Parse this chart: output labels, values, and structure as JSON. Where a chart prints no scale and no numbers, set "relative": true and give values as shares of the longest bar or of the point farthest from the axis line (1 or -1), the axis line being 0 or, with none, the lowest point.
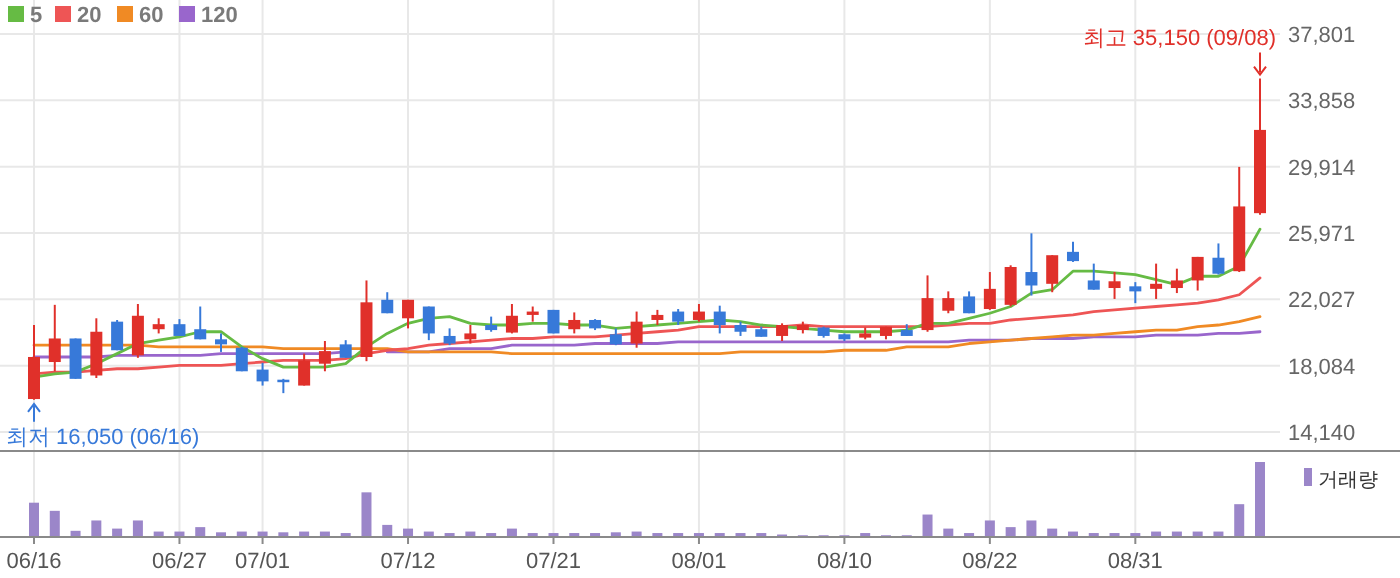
{
  "chart_data": [
    {
      "type": "candlestick",
      "categories": [
        null,
        null,
        null,
        null,
        null,
        null,
        null,
        null,
        null,
        null,
        null,
        null,
        null,
        null,
        null,
        null,
        null,
        null,
        null,
        null,
        null,
        null,
        null,
        null,
        null,
        null,
        null,
        null,
        null,
        null,
        null,
        null,
        null,
        null,
        null,
        null,
        null,
        null,
        null,
        null,
        null,
        null,
        null,
        null,
        null,
        null,
        null,
        null,
        null,
        null,
        null,
        null,
        null,
        null,
        null,
        null,
        null,
        null,
        null,
        null
      ],
      "ohlc": [
        [
          16100,
          20500,
          16050,
          18600
        ],
        [
          18300,
          21700,
          17750,
          19700
        ],
        [
          19700,
          19700,
          17300,
          17300
        ],
        [
          17500,
          20900,
          17350,
          20100
        ],
        [
          20700,
          20800,
          19000,
          19000
        ],
        [
          18700,
          21750,
          18550,
          21050
        ],
        [
          20250,
          20900,
          20000,
          20550
        ],
        [
          20550,
          20850,
          19850,
          19850
        ],
        [
          20250,
          21600,
          19650,
          19650
        ],
        [
          19650,
          20000,
          18900,
          19350
        ],
        [
          19150,
          19200,
          17750,
          17750
        ],
        [
          17850,
          18250,
          16900,
          17150
        ],
        [
          17250,
          17300,
          16450,
          17100
        ],
        [
          16900,
          18800,
          16900,
          18400
        ],
        [
          18200,
          19550,
          17750,
          18950
        ],
        [
          19350,
          19600,
          18550,
          18550
        ],
        [
          18600,
          23150,
          18350,
          21850
        ],
        [
          22000,
          22450,
          21200,
          21200
        ],
        [
          20900,
          22000,
          20300,
          22000
        ],
        [
          21600,
          21600,
          19600,
          20000
        ],
        [
          19850,
          20300,
          19300,
          19400
        ],
        [
          19650,
          20500,
          19400,
          20000
        ],
        [
          20500,
          21000,
          20100,
          20200
        ],
        [
          20050,
          21750,
          20000,
          21050
        ],
        [
          21100,
          21600,
          20700,
          21300
        ],
        [
          21400,
          21400,
          20000,
          20000
        ],
        [
          20250,
          21250,
          20000,
          20800
        ],
        [
          20800,
          20850,
          20200,
          20300
        ],
        [
          19950,
          20300,
          19300,
          19350
        ],
        [
          19400,
          21300,
          19150,
          20700
        ],
        [
          20800,
          21400,
          20500,
          21100
        ],
        [
          21300,
          21450,
          20500,
          20700
        ],
        [
          20800,
          21750,
          20700,
          21300
        ],
        [
          21300,
          21650,
          20000,
          20500
        ],
        [
          20500,
          20700,
          19850,
          20100
        ],
        [
          20250,
          20400,
          19800,
          19800
        ],
        [
          19850,
          20600,
          19550,
          20500
        ],
        [
          20200,
          20700,
          20000,
          20500
        ],
        [
          20350,
          20400,
          19750,
          19850
        ],
        [
          19950,
          20000,
          19550,
          19650
        ],
        [
          19750,
          20350,
          19650,
          20000
        ],
        [
          19850,
          20400,
          19650,
          20400
        ],
        [
          20200,
          20550,
          19850,
          19850
        ],
        [
          20200,
          23450,
          20100,
          22100
        ],
        [
          21350,
          22500,
          21200,
          22100
        ],
        [
          22200,
          22500,
          21200,
          21200
        ],
        [
          21450,
          23650,
          21400,
          22650
        ],
        [
          21700,
          24050,
          21600,
          23950
        ],
        [
          23650,
          25950,
          22250,
          22850
        ],
        [
          22950,
          24650,
          22450,
          24650
        ],
        [
          24850,
          25450,
          24250,
          24300
        ],
        [
          23150,
          24150,
          22600,
          22600
        ],
        [
          22700,
          23650,
          22050,
          23100
        ],
        [
          22800,
          23050,
          21800,
          22500
        ],
        [
          22650,
          24150,
          22050,
          22950
        ],
        [
          22700,
          23850,
          22400,
          23150
        ],
        [
          23150,
          24550,
          22550,
          24550
        ],
        [
          24500,
          25350,
          23500,
          23550
        ],
        [
          23700,
          29900,
          23650,
          27550
        ],
        [
          27150,
          35150,
          27050,
          32100
        ]
      ],
      "series": [
        {
          "name": "5",
          "type": "line",
          "color": "#66bb44",
          "values": [
            17400,
            17600,
            17700,
            18200,
            18800,
            19400,
            19600,
            19800,
            20100,
            20100,
            19200,
            18500,
            18000,
            18000,
            18000,
            18200,
            19200,
            20000,
            20600,
            20900,
            21000,
            20600,
            20500,
            20500,
            20600,
            20600,
            20500,
            20500,
            20300,
            20400,
            20500,
            20600,
            20700,
            20800,
            20700,
            20500,
            20400,
            20300,
            20200,
            20100,
            20100,
            20100,
            20200,
            20600,
            20600,
            20900,
            21200,
            21600,
            22400,
            22600,
            23700,
            23700,
            23600,
            23500,
            23200,
            22900,
            23400,
            23400,
            24000,
            26200
          ]
        },
        {
          "name": "20",
          "type": "line",
          "color": "#ee5555",
          "values": [
            17600,
            17700,
            17700,
            17800,
            17900,
            17900,
            18000,
            18100,
            18100,
            18100,
            18200,
            18300,
            18400,
            18400,
            18400,
            18500,
            18800,
            19000,
            19100,
            19300,
            19400,
            19500,
            19600,
            19700,
            19700,
            19800,
            19800,
            19800,
            19900,
            20000,
            20100,
            20200,
            20400,
            20400,
            20400,
            20400,
            20400,
            20500,
            20400,
            20400,
            20400,
            20400,
            20400,
            20400,
            20500,
            20600,
            20600,
            20800,
            20900,
            21000,
            21100,
            21300,
            21400,
            21500,
            21600,
            21700,
            21800,
            22000,
            22300,
            23300
          ]
        },
        {
          "name": "60",
          "type": "line",
          "color": "#f08a24",
          "values": [
            19300,
            19300,
            19300,
            19300,
            19300,
            19300,
            19200,
            19200,
            19200,
            19200,
            19200,
            19200,
            19100,
            19100,
            19100,
            19100,
            19100,
            19100,
            18900,
            18900,
            18900,
            18900,
            18900,
            18800,
            18800,
            18800,
            18800,
            18800,
            18800,
            18800,
            18800,
            18800,
            18800,
            18800,
            18900,
            18900,
            18900,
            18900,
            18900,
            19000,
            19000,
            19000,
            19200,
            19200,
            19200,
            19400,
            19500,
            19600,
            19700,
            19800,
            19900,
            19900,
            20000,
            20100,
            20200,
            20200,
            20400,
            20500,
            20700,
            21000
          ]
        },
        {
          "name": "120",
          "type": "line",
          "color": "#9966cc",
          "values": [
            18600,
            18600,
            18600,
            18600,
            18700,
            18700,
            18700,
            18700,
            18700,
            18800,
            18800,
            18800,
            18800,
            18800,
            18800,
            18900,
            null,
            18900,
            18900,
            18900,
            19100,
            19100,
            19100,
            19300,
            19300,
            19300,
            19300,
            19400,
            19400,
            19400,
            19400,
            19500,
            19500,
            19500,
            19500,
            19500,
            19500,
            19500,
            19500,
            19500,
            19500,
            19500,
            19500,
            19500,
            19500,
            19600,
            19600,
            19600,
            19700,
            19700,
            19700,
            19800,
            19800,
            19800,
            19900,
            19900,
            19900,
            20000,
            20000,
            20100
          ]
        }
      ],
      "ylim": [
        13070,
        37801
      ],
      "yticks": [
        {
          "value": 14140,
          "label": "14,140"
        },
        {
          "value": 18084,
          "label": "18,084"
        },
        {
          "value": 22027,
          "label": "22,027"
        },
        {
          "value": 25971,
          "label": "25,971"
        },
        {
          "value": 29914,
          "label": "29,914"
        },
        {
          "value": 33858,
          "label": "33,858"
        },
        {
          "value": 37801,
          "label": "37,801"
        }
      ],
      "grid": true,
      "legend": "top left",
      "tick_labels": "y",
      "annotations": [
        "최고 35,150 (09/08)",
        "최저 16,050 (06/16)"
      ]
    },
    {
      "type": "bar",
      "categories": [
        "06/16",
        null,
        null,
        null,
        null,
        null,
        null,
        "06/27",
        null,
        null,
        null,
        "07/01",
        null,
        null,
        null,
        null,
        null,
        null,
        "07/12",
        null,
        null,
        null,
        null,
        null,
        null,
        "07/21",
        null,
        null,
        null,
        null,
        null,
        null,
        "08/01",
        null,
        null,
        null,
        null,
        null,
        null,
        "08/10",
        null,
        null,
        null,
        null,
        null,
        null,
        "08/22",
        null,
        null,
        null,
        null,
        null,
        null,
        "08/31",
        null,
        null,
        null,
        null,
        null,
        null
      ],
      "series": [
        {
          "name": "거래량",
          "color": "#9b86c9",
          "values": [
            0.45,
            0.34,
            0.07,
            0.21,
            0.1,
            0.21,
            0.06,
            0.06,
            0.12,
            0.05,
            0.06,
            0.06,
            0.05,
            0.06,
            0.06,
            0.04,
            0.59,
            0.15,
            0.1,
            0.06,
            0.04,
            0.06,
            0.04,
            0.1,
            0.04,
            0.04,
            0.04,
            0.04,
            0.05,
            0.06,
            0.04,
            0.04,
            0.04,
            0.04,
            0.04,
            0.04,
            0.02,
            0.01,
            0.01,
            0.01,
            0.04,
            0.01,
            0.01,
            0.29,
            0.1,
            0.04,
            0.21,
            0.12,
            0.21,
            0.1,
            0.06,
            0.04,
            0.04,
            0.04,
            0.06,
            0.06,
            0.06,
            0.06,
            0.43,
            1
          ]
        }
      ],
      "relative": true,
      "grid": "x",
      "legend": "top right",
      "tick_labels": "x"
    }
  ]
}
